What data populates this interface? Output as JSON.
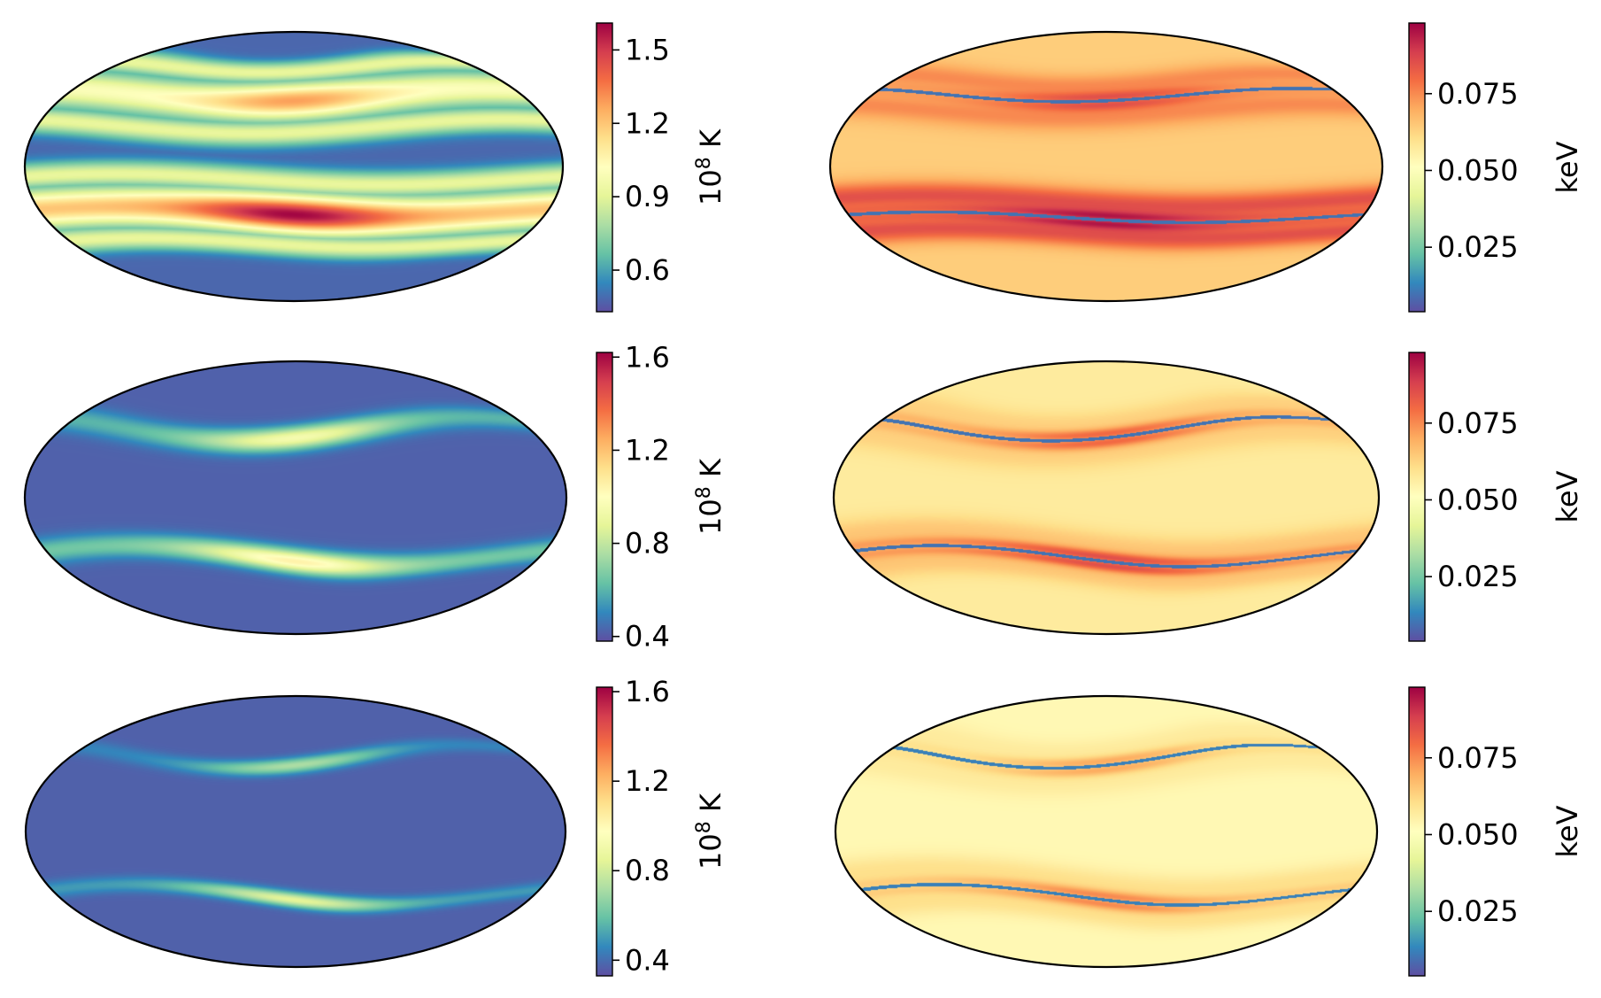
{
  "figure": {
    "colormap_name": "Spectral_r",
    "colormap_stops": [
      "#5e4fa2",
      "#3288bd",
      "#66c2a5",
      "#abdda4",
      "#e6f598",
      "#ffffbf",
      "#fee08b",
      "#fdae61",
      "#f46d43",
      "#d53e4f",
      "#9e0142"
    ],
    "outline_color": "#000000"
  },
  "chart_data": [
    {
      "type": "heatmap",
      "projection": "mollweide",
      "row": 1,
      "column": "left",
      "title": "",
      "colorbar": {
        "label": "10^8 K",
        "label_base": "10",
        "label_exp": "8",
        "label_unit": "K",
        "vmin": 0.43,
        "vmax": 1.61,
        "ticks": [
          "0.6",
          "0.9",
          "1.2",
          "1.5"
        ],
        "tick_values": [
          0.6,
          0.9,
          1.2,
          1.5
        ]
      },
      "map": {
        "background": 0.48,
        "band_width_deg": 20,
        "halo_width_deg": 7,
        "halo_value": 0.92,
        "bands": [
          {
            "latitude_deg": 40,
            "amplitude_deg": 4,
            "phase_deg": -60,
            "peak": 1.28,
            "edge": 1.0
          },
          {
            "latitude_deg": -25,
            "amplitude_deg": -3,
            "phase_deg": 30,
            "peak": 1.6,
            "edge": 1.2
          }
        ]
      }
    },
    {
      "type": "heatmap",
      "projection": "mollweide",
      "row": 1,
      "column": "right",
      "title": "",
      "colorbar": {
        "label": "keV",
        "vmin": 0.004,
        "vmax": 0.098,
        "ticks": [
          "0.025",
          "0.050",
          "0.075"
        ],
        "tick_values": [
          0.025,
          0.05,
          0.075
        ]
      },
      "map": {
        "background": 0.064,
        "shells": [
          {
            "latitude_deg": 40,
            "amplitude_deg": 4,
            "phase_deg": -60,
            "inner_value": 0.01,
            "rim_value": 0.085,
            "halo_value": 0.075
          },
          {
            "latitude_deg": -28,
            "amplitude_deg": -3,
            "phase_deg": 30,
            "inner_value": 0.01,
            "rim_value": 0.095,
            "halo_value": 0.085
          }
        ]
      }
    },
    {
      "type": "heatmap",
      "projection": "mollweide",
      "row": 2,
      "column": "left",
      "title": "",
      "colorbar": {
        "label": "10^8 K",
        "label_base": "10",
        "label_exp": "8",
        "label_unit": "K",
        "vmin": 0.38,
        "vmax": 1.62,
        "ticks": [
          "0.4",
          "0.8",
          "1.2",
          "1.6"
        ],
        "tick_values": [
          0.4,
          0.8,
          1.2,
          1.6
        ]
      },
      "map": {
        "background": 0.42,
        "band_width_deg": 12,
        "halo_width_deg": 0,
        "halo_value": 0.42,
        "bands": [
          {
            "latitude_deg": 38,
            "amplitude_deg": 7,
            "phase_deg": -50,
            "peak": 0.95,
            "edge": 0.6
          },
          {
            "latitude_deg": -32,
            "amplitude_deg": -6,
            "phase_deg": 30,
            "peak": 1.05,
            "edge": 0.65
          }
        ]
      }
    },
    {
      "type": "heatmap",
      "projection": "mollweide",
      "row": 2,
      "column": "right",
      "title": "",
      "colorbar": {
        "label": "keV",
        "vmin": 0.004,
        "vmax": 0.098,
        "ticks": [
          "0.025",
          "0.050",
          "0.075"
        ],
        "tick_values": [
          0.025,
          0.05,
          0.075
        ]
      },
      "map": {
        "background": 0.057,
        "shells": [
          {
            "latitude_deg": 38,
            "amplitude_deg": 7,
            "phase_deg": -50,
            "inner_value": 0.01,
            "rim_value": 0.08,
            "halo_value": 0.063
          },
          {
            "latitude_deg": -32,
            "amplitude_deg": -6,
            "phase_deg": 30,
            "inner_value": 0.01,
            "rim_value": 0.085,
            "halo_value": 0.065
          }
        ]
      }
    },
    {
      "type": "heatmap",
      "projection": "mollweide",
      "row": 3,
      "column": "left",
      "title": "",
      "colorbar": {
        "label": "10^8 K",
        "label_base": "10",
        "label_exp": "8",
        "label_unit": "K",
        "vmin": 0.33,
        "vmax": 1.62,
        "ticks": [
          "0.4",
          "0.8",
          "1.2",
          "1.6"
        ],
        "tick_values": [
          0.4,
          0.8,
          1.2,
          1.6
        ]
      },
      "map": {
        "background": 0.37,
        "band_width_deg": 8,
        "halo_width_deg": 0,
        "halo_value": 0.37,
        "bands": [
          {
            "latitude_deg": 42,
            "amplitude_deg": 7,
            "phase_deg": -50,
            "peak": 0.72,
            "edge": 0.45
          },
          {
            "latitude_deg": -35,
            "amplitude_deg": -6,
            "phase_deg": 30,
            "peak": 0.85,
            "edge": 0.5
          }
        ]
      }
    },
    {
      "type": "heatmap",
      "projection": "mollweide",
      "row": 3,
      "column": "right",
      "title": "",
      "colorbar": {
        "label": "keV",
        "vmin": 0.004,
        "vmax": 0.098,
        "ticks": [
          "0.025",
          "0.050",
          "0.075"
        ],
        "tick_values": [
          0.025,
          0.05,
          0.075
        ]
      },
      "map": {
        "background": 0.053,
        "shells": [
          {
            "latitude_deg": 42,
            "amplitude_deg": 7,
            "phase_deg": -50,
            "inner_value": 0.012,
            "rim_value": 0.07,
            "halo_value": 0.057
          },
          {
            "latitude_deg": -35,
            "amplitude_deg": -6,
            "phase_deg": 30,
            "inner_value": 0.012,
            "rim_value": 0.075,
            "halo_value": 0.06
          }
        ]
      }
    }
  ]
}
